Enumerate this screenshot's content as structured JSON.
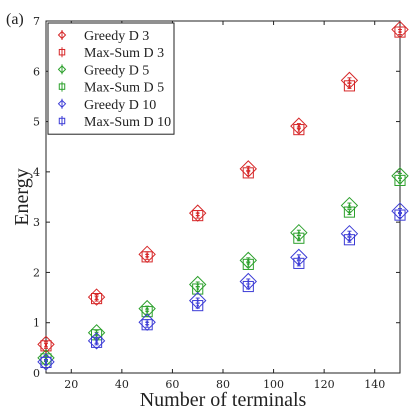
{
  "chart_data": {
    "type": "scatter",
    "panel_label": "(a)",
    "title": "",
    "xlabel": "Number of terminals",
    "ylabel": "Energy",
    "xlim": [
      10,
      150
    ],
    "ylim": [
      0,
      7
    ],
    "xticks": [
      20,
      40,
      60,
      80,
      100,
      120,
      140
    ],
    "yticks": [
      0,
      1,
      2,
      3,
      4,
      5,
      6,
      7
    ],
    "x": [
      10,
      30,
      50,
      70,
      90,
      110,
      130,
      150
    ],
    "legend_position": "top-left",
    "series": [
      {
        "name": "Greedy D 3",
        "color": "#d62728",
        "marker": "diamond",
        "values": [
          0.57,
          1.51,
          2.36,
          3.18,
          4.06,
          4.91,
          5.82,
          6.83
        ]
      },
      {
        "name": "Max-Sum D 3",
        "color": "#d62728",
        "marker": "square",
        "values": [
          0.54,
          1.48,
          2.31,
          3.13,
          3.98,
          4.84,
          5.71,
          6.78
        ]
      },
      {
        "name": "Greedy D 5",
        "color": "#2ca02c",
        "marker": "diamond",
        "values": [
          0.3,
          0.8,
          1.28,
          1.76,
          2.24,
          2.79,
          3.33,
          3.92
        ]
      },
      {
        "name": "Max-Sum D 5",
        "color": "#2ca02c",
        "marker": "square",
        "values": [
          0.28,
          0.76,
          1.22,
          1.67,
          2.16,
          2.68,
          3.2,
          3.83
        ]
      },
      {
        "name": "Greedy D 10",
        "color": "#3b3bd6",
        "marker": "diamond",
        "values": [
          0.22,
          0.64,
          1.01,
          1.44,
          1.82,
          2.3,
          2.77,
          3.22
        ]
      },
      {
        "name": "Max-Sum D 10",
        "color": "#3b3bd6",
        "marker": "square",
        "values": [
          0.21,
          0.61,
          0.96,
          1.34,
          1.72,
          2.18,
          2.65,
          3.14
        ]
      }
    ]
  }
}
